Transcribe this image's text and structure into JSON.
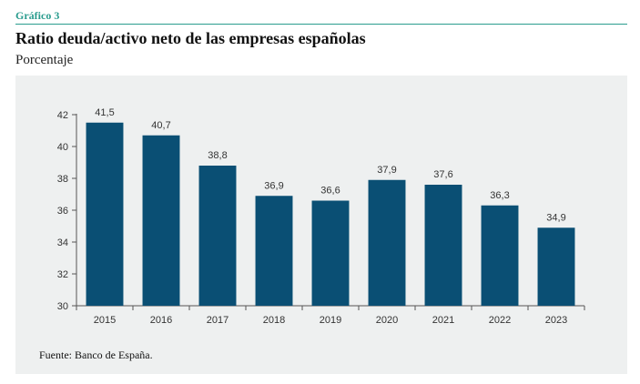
{
  "header": {
    "kicker": "Gráfico 3",
    "title": "Ratio deuda/activo neto de las empresas españolas",
    "subtitle": "Porcentaje"
  },
  "footer": {
    "source": "Fuente: Banco de España."
  },
  "colors": {
    "accent": "#2a9c8e",
    "bar": "#0a4f74",
    "panel": "#eef0f0"
  },
  "chart_data": {
    "type": "bar",
    "categories": [
      "2015",
      "2016",
      "2017",
      "2018",
      "2019",
      "2020",
      "2021",
      "2022",
      "2023"
    ],
    "values": [
      41.5,
      40.7,
      38.8,
      36.9,
      36.6,
      37.9,
      37.6,
      36.3,
      34.9
    ],
    "value_labels": [
      "41,5",
      "40,7",
      "38,8",
      "36,9",
      "36,6",
      "37,9",
      "37,6",
      "36,3",
      "34,9"
    ],
    "ylim": [
      30,
      42
    ],
    "yticks": [
      30,
      32,
      34,
      36,
      38,
      40,
      42
    ],
    "grid": false,
    "legend": "none"
  }
}
